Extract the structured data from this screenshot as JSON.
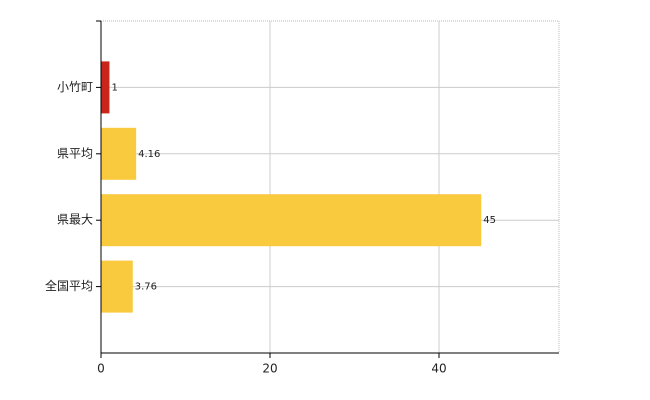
{
  "chart_data": {
    "type": "bar",
    "orientation": "horizontal",
    "categories": [
      "小竹町",
      "県平均",
      "県最大",
      "全国平均"
    ],
    "values": [
      1,
      4.16,
      45,
      3.76
    ],
    "colors": [
      "#c8261a",
      "#f9c93e",
      "#f9c93e",
      "#f9c93e"
    ],
    "xlim": [
      0,
      54.2
    ],
    "xticks": [
      0,
      20,
      40
    ],
    "grid": true
  }
}
